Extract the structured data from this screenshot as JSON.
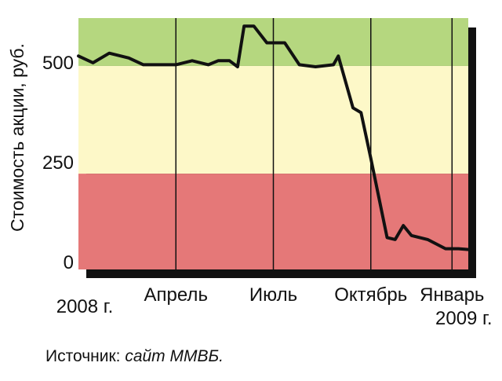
{
  "chart_data": {
    "type": "line",
    "ylabel": "Стоимость акции, руб.",
    "ylim": [
      -20,
      610
    ],
    "yticks": [
      0,
      250,
      500
    ],
    "xlim": [
      0,
      12
    ],
    "xticks": [
      {
        "x": 0,
        "label": "2008 г."
      },
      {
        "x": 3,
        "label": "Апрель"
      },
      {
        "x": 6,
        "label": "Июль"
      },
      {
        "x": 9,
        "label": "Октябрь"
      },
      {
        "x": 11.5,
        "label": "Январь",
        "label2": "2009 г."
      }
    ],
    "bands": [
      {
        "from": 490,
        "to": 610,
        "color": "#b5d77f"
      },
      {
        "from": 220,
        "to": 490,
        "color": "#fdf8c8"
      },
      {
        "from": -20,
        "to": 220,
        "color": "#e57878"
      }
    ],
    "series": [
      {
        "color": "#111111",
        "x": [
          0,
          0.45,
          0.95,
          1.55,
          2.0,
          2.5,
          3.0,
          3.5,
          4.0,
          4.3,
          4.65,
          4.9,
          5.1,
          5.4,
          5.8,
          6.0,
          6.35,
          6.8,
          7.3,
          7.85,
          8.0,
          8.45,
          8.7,
          9.0,
          9.5,
          9.75,
          10.0,
          10.25,
          10.75,
          11.3,
          11.7,
          12.0
        ],
        "values": [
          515,
          498,
          522,
          510,
          493,
          493,
          493,
          503,
          493,
          503,
          503,
          488,
          590,
          590,
          548,
          548,
          548,
          493,
          488,
          493,
          515,
          385,
          373,
          258,
          60,
          55,
          90,
          65,
          55,
          32,
          32,
          30
        ]
      }
    ]
  },
  "source": {
    "label": "Источник: ",
    "name": "сайт ММВБ."
  }
}
